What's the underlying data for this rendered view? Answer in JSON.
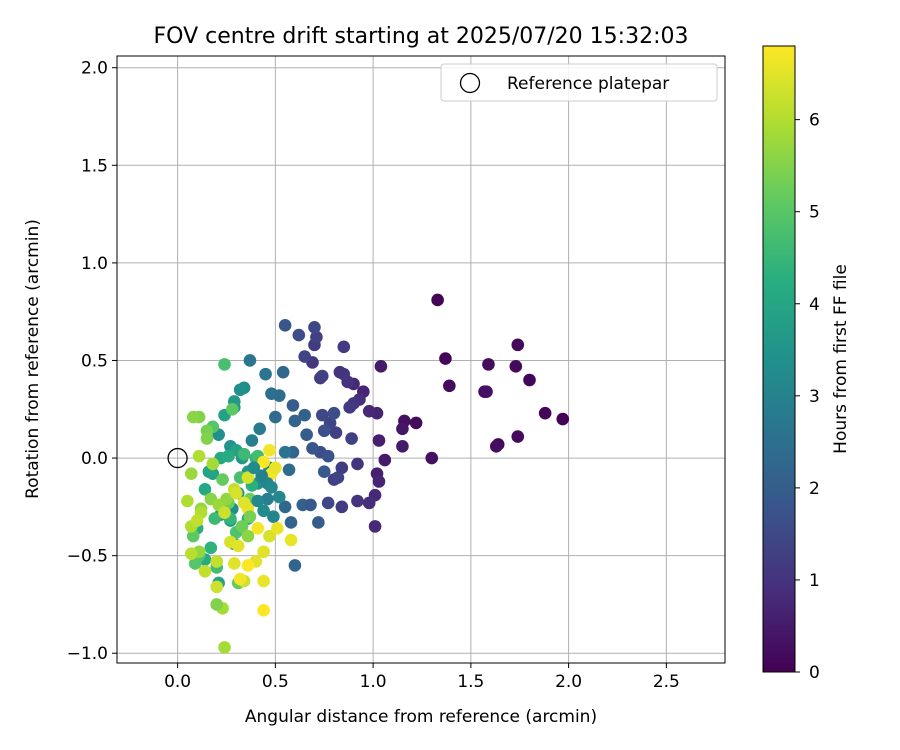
{
  "chart_data": {
    "type": "scatter",
    "title": "FOV centre drift starting at 2025/07/20 15:32:03",
    "xlabel": "Angular distance from reference (arcmin)",
    "ylabel": "Rotation from reference (arcmin)",
    "xlim": [
      -0.31,
      2.8
    ],
    "ylim": [
      -1.05,
      2.06
    ],
    "xticks": [
      "0.0",
      "0.5",
      "1.0",
      "1.5",
      "2.0",
      "2.5"
    ],
    "yticks": [
      "2.0",
      "1.5",
      "1.0",
      "0.5",
      "0.0",
      "−0.5",
      "−1.0"
    ],
    "grid": true,
    "legend": {
      "label": "Reference platepar",
      "placement": "top-right",
      "marker": "open-circle"
    },
    "reference_point": {
      "x": 0.0,
      "y": 0.0
    },
    "colorbar": {
      "label": "Hours from first FF file",
      "colormap": "viridis",
      "range": [
        0,
        6.8
      ],
      "ticks": [
        "0",
        "1",
        "2",
        "3",
        "4",
        "5",
        "6"
      ]
    },
    "series": [
      {
        "points": [
          [
            1.33,
            0.81,
            0.05
          ],
          [
            1.74,
            0.58,
            0.15
          ],
          [
            1.37,
            0.51,
            0.1
          ],
          [
            1.59,
            0.48,
            0.2
          ],
          [
            1.73,
            0.47,
            0.15
          ],
          [
            1.8,
            0.4,
            0.1
          ],
          [
            1.39,
            0.37,
            0.2
          ],
          [
            1.57,
            0.34,
            0.25
          ],
          [
            1.58,
            0.34,
            0.3
          ],
          [
            1.88,
            0.23,
            0.1
          ],
          [
            1.97,
            0.2,
            0.05
          ],
          [
            1.22,
            0.18,
            0.2
          ],
          [
            1.16,
            0.19,
            0.3
          ],
          [
            1.15,
            0.15,
            0.4
          ],
          [
            1.74,
            0.11,
            0.2
          ],
          [
            1.64,
            0.07,
            0.15
          ],
          [
            1.63,
            0.06,
            0.25
          ],
          [
            1.15,
            0.06,
            0.5
          ],
          [
            1.3,
            0.0,
            0.3
          ],
          [
            1.06,
            -0.01,
            0.5
          ],
          [
            1.03,
            0.09,
            0.6
          ],
          [
            1.04,
            0.47,
            0.5
          ],
          [
            1.02,
            -0.08,
            0.6
          ],
          [
            1.03,
            -0.12,
            0.7
          ],
          [
            1.01,
            -0.19,
            0.8
          ],
          [
            0.98,
            -0.23,
            0.9
          ],
          [
            0.92,
            -0.22,
            1.0
          ],
          [
            1.01,
            -0.35,
            0.8
          ],
          [
            1.02,
            0.23,
            0.7
          ],
          [
            0.98,
            0.24,
            0.8
          ],
          [
            0.95,
            0.34,
            0.7
          ],
          [
            0.93,
            0.3,
            0.9
          ],
          [
            0.9,
            0.38,
            0.8
          ],
          [
            0.87,
            0.39,
            1.0
          ],
          [
            0.85,
            0.43,
            1.1
          ],
          [
            0.85,
            0.57,
            1.2
          ],
          [
            0.83,
            0.44,
            1.0
          ],
          [
            0.9,
            0.28,
            1.1
          ],
          [
            0.88,
            0.26,
            1.2
          ],
          [
            0.89,
            0.1,
            1.3
          ],
          [
            0.92,
            -0.03,
            1.0
          ],
          [
            0.84,
            -0.05,
            1.2
          ],
          [
            0.8,
            -0.11,
            1.3
          ],
          [
            0.82,
            -0.1,
            1.4
          ],
          [
            0.84,
            -0.25,
            1.2
          ],
          [
            0.77,
            -0.23,
            1.5
          ],
          [
            0.81,
            0.13,
            1.3
          ],
          [
            0.78,
            0.18,
            1.4
          ],
          [
            0.8,
            0.23,
            1.6
          ],
          [
            0.74,
            0.22,
            1.5
          ],
          [
            0.75,
            0.14,
            1.7
          ],
          [
            0.73,
            0.41,
            1.2
          ],
          [
            0.74,
            0.42,
            1.3
          ],
          [
            0.69,
            0.49,
            1.1
          ],
          [
            0.7,
            0.58,
            1.2
          ],
          [
            0.71,
            0.62,
            1.3
          ],
          [
            0.7,
            0.67,
            1.5
          ],
          [
            0.65,
            0.52,
            1.4
          ],
          [
            0.62,
            0.63,
            1.6
          ],
          [
            0.55,
            0.68,
            1.8
          ],
          [
            0.73,
            0.03,
            1.6
          ],
          [
            0.77,
            0.01,
            1.7
          ],
          [
            0.69,
            0.05,
            1.8
          ],
          [
            0.75,
            -0.07,
            1.9
          ],
          [
            0.72,
            -0.33,
            2.0
          ],
          [
            0.64,
            -0.24,
            2.1
          ],
          [
            0.68,
            -0.24,
            1.9
          ],
          [
            0.58,
            -0.33,
            2.2
          ],
          [
            0.55,
            -0.25,
            2.3
          ],
          [
            0.57,
            -0.06,
            2.4
          ],
          [
            0.59,
            0.03,
            2.2
          ],
          [
            0.66,
            0.12,
            2.0
          ],
          [
            0.65,
            0.22,
            2.1
          ],
          [
            0.59,
            0.27,
            2.0
          ],
          [
            0.6,
            0.19,
            2.2
          ],
          [
            0.54,
            0.44,
            2.3
          ],
          [
            0.52,
            0.32,
            2.4
          ],
          [
            0.48,
            0.33,
            2.5
          ],
          [
            0.5,
            0.21,
            2.4
          ],
          [
            0.55,
            0.03,
            2.6
          ],
          [
            0.45,
            0.43,
            2.6
          ],
          [
            0.37,
            0.5,
            2.7
          ],
          [
            0.42,
            0.15,
            2.8
          ],
          [
            0.38,
            0.09,
            2.9
          ],
          [
            0.47,
            -0.05,
            3.0
          ],
          [
            0.6,
            -0.55,
            2.2
          ],
          [
            0.49,
            -0.3,
            3.1
          ],
          [
            0.52,
            -0.2,
            3.2
          ],
          [
            0.44,
            -0.27,
            3.3
          ],
          [
            0.41,
            -0.13,
            3.4
          ],
          [
            0.36,
            -0.07,
            3.5
          ],
          [
            0.33,
            0.0,
            3.6
          ],
          [
            0.31,
            -0.18,
            3.6
          ],
          [
            0.28,
            -0.26,
            3.4
          ],
          [
            0.27,
            0.06,
            3.5
          ],
          [
            0.34,
            0.36,
            3.3
          ],
          [
            0.32,
            0.35,
            3.4
          ],
          [
            0.29,
            0.26,
            3.6
          ],
          [
            0.29,
            0.29,
            3.7
          ],
          [
            0.27,
            -0.32,
            3.7
          ],
          [
            0.22,
            -0.29,
            3.8
          ],
          [
            0.21,
            0.12,
            3.4
          ],
          [
            0.24,
            0.22,
            3.9
          ],
          [
            0.29,
            -0.44,
            3.8
          ],
          [
            0.3,
            0.04,
            3.9
          ],
          [
            0.18,
            -0.08,
            3.9
          ],
          [
            0.16,
            -0.07,
            4.0
          ],
          [
            0.14,
            -0.16,
            4.1
          ],
          [
            0.22,
            0.0,
            4.1
          ],
          [
            0.26,
            0.01,
            4.2
          ],
          [
            0.21,
            -0.64,
            4.0
          ],
          [
            0.14,
            -0.52,
            4.2
          ],
          [
            0.1,
            -0.36,
            4.3
          ],
          [
            0.17,
            -0.46,
            4.4
          ],
          [
            0.36,
            -0.31,
            4.2
          ],
          [
            0.38,
            -0.14,
            4.3
          ],
          [
            0.4,
            0.0,
            4.5
          ],
          [
            0.34,
            0.02,
            4.6
          ],
          [
            0.41,
            0.01,
            4.7
          ],
          [
            0.32,
            -0.1,
            4.8
          ],
          [
            0.27,
            -0.31,
            4.5
          ],
          [
            0.19,
            -0.31,
            4.6
          ],
          [
            0.24,
            0.48,
            4.8
          ],
          [
            0.2,
            -0.56,
            4.7
          ],
          [
            0.3,
            -0.38,
            4.9
          ],
          [
            0.11,
            -0.5,
            4.9
          ],
          [
            0.09,
            -0.54,
            5.0
          ],
          [
            0.08,
            -0.4,
            5.1
          ],
          [
            0.18,
            0.16,
            5.0
          ],
          [
            0.28,
            0.25,
            5.1
          ],
          [
            0.23,
            -0.11,
            5.2
          ],
          [
            0.26,
            -0.23,
            5.3
          ],
          [
            0.31,
            -0.64,
            5.2
          ],
          [
            0.37,
            -0.21,
            5.3
          ],
          [
            0.15,
            0.14,
            5.4
          ],
          [
            0.15,
            0.1,
            5.5
          ],
          [
            0.11,
            0.21,
            5.5
          ],
          [
            0.08,
            0.21,
            5.6
          ],
          [
            0.17,
            -0.21,
            5.6
          ],
          [
            0.12,
            -0.26,
            5.7
          ],
          [
            0.21,
            -0.24,
            5.8
          ],
          [
            0.25,
            -0.21,
            5.7
          ],
          [
            0.23,
            -0.77,
            5.9
          ],
          [
            0.24,
            -0.97,
            5.9
          ],
          [
            0.11,
            -0.48,
            5.7
          ],
          [
            0.12,
            -0.28,
            6.0
          ],
          [
            0.07,
            -0.35,
            6.0
          ],
          [
            0.07,
            -0.49,
            6.1
          ],
          [
            0.05,
            -0.22,
            6.0
          ],
          [
            0.1,
            -0.32,
            6.2
          ],
          [
            0.14,
            -0.58,
            6.2
          ],
          [
            0.2,
            -0.66,
            6.3
          ],
          [
            0.2,
            -0.53,
            6.2
          ],
          [
            0.24,
            -0.28,
            6.3
          ],
          [
            0.27,
            -0.43,
            6.4
          ],
          [
            0.29,
            -0.54,
            6.5
          ],
          [
            0.34,
            -0.63,
            6.3
          ],
          [
            0.4,
            -0.53,
            6.5
          ],
          [
            0.44,
            -0.63,
            6.6
          ],
          [
            0.44,
            -0.48,
            6.5
          ],
          [
            0.47,
            -0.4,
            6.4
          ],
          [
            0.51,
            -0.36,
            6.6
          ],
          [
            0.41,
            -0.36,
            6.7
          ],
          [
            0.36,
            -0.26,
            6.6
          ],
          [
            0.34,
            -0.23,
            6.5
          ],
          [
            0.36,
            -0.1,
            6.4
          ],
          [
            0.48,
            -0.08,
            6.7
          ],
          [
            0.44,
            -0.02,
            6.8
          ],
          [
            0.47,
            0.04,
            6.7
          ],
          [
            0.5,
            -0.05,
            6.6
          ],
          [
            0.44,
            -0.78,
            6.8
          ],
          [
            0.32,
            -0.62,
            6.7
          ],
          [
            0.36,
            -0.55,
            6.8
          ],
          [
            0.58,
            -0.42,
            6.6
          ],
          [
            0.31,
            -0.45,
            6.5
          ],
          [
            0.07,
            -0.08,
            5.8
          ],
          [
            0.11,
            0.01,
            6.0
          ],
          [
            0.18,
            -0.03,
            5.9
          ],
          [
            0.29,
            -0.16,
            6.2
          ],
          [
            0.3,
            -0.18,
            6.4
          ],
          [
            0.33,
            -0.35,
            5.3
          ],
          [
            0.37,
            -0.3,
            5.4
          ],
          [
            0.46,
            -0.13,
            3.1
          ],
          [
            0.48,
            -0.15,
            3.2
          ],
          [
            0.43,
            -0.09,
            3.0
          ],
          [
            0.39,
            -0.05,
            3.3
          ],
          [
            0.46,
            -0.21,
            2.9
          ],
          [
            0.41,
            -0.22,
            3.2
          ],
          [
            0.36,
            -0.4,
            5.6
          ],
          [
            0.2,
            -0.75,
            5.5
          ]
        ]
      }
    ]
  }
}
